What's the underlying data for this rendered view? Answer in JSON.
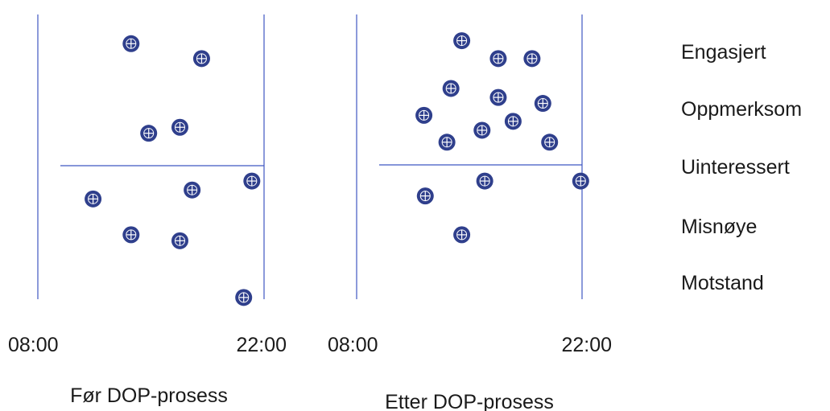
{
  "colors": {
    "axis": "#3f57c2",
    "point_fill": "#2f3f8c",
    "point_mark": "#ffffff",
    "text": "#1a1a1a"
  },
  "chart_data": {
    "type": "scatter",
    "x_ticks": [
      "08:00",
      "22:00"
    ],
    "y_categories": [
      "Engasjert",
      "Oppmerksom",
      "Uinteressert",
      "Misnøye",
      "Motstand"
    ],
    "ylim": [
      0.5,
      5.2
    ],
    "xlim": [
      8,
      22
    ],
    "grid": false,
    "legend": "none",
    "panels": [
      {
        "label": "Før DOP-prosess",
        "points": [
          {
            "x": 12.2,
            "y": 5.05
          },
          {
            "x": 17.4,
            "y": 4.8
          },
          {
            "x": 15.8,
            "y": 3.65
          },
          {
            "x": 13.5,
            "y": 3.55
          },
          {
            "x": 21.1,
            "y": 2.75
          },
          {
            "x": 16.7,
            "y": 2.6
          },
          {
            "x": 9.4,
            "y": 2.45
          },
          {
            "x": 12.2,
            "y": 1.85
          },
          {
            "x": 15.8,
            "y": 1.75
          },
          {
            "x": 20.5,
            "y": 0.8
          }
        ]
      },
      {
        "label": "Etter DOP-prosess",
        "points": [
          {
            "x": 13.1,
            "y": 5.1
          },
          {
            "x": 15.8,
            "y": 4.8
          },
          {
            "x": 18.3,
            "y": 4.8
          },
          {
            "x": 12.3,
            "y": 4.3
          },
          {
            "x": 15.8,
            "y": 4.15
          },
          {
            "x": 19.1,
            "y": 4.05
          },
          {
            "x": 10.3,
            "y": 3.85
          },
          {
            "x": 16.9,
            "y": 3.75
          },
          {
            "x": 14.6,
            "y": 3.6
          },
          {
            "x": 12.0,
            "y": 3.4
          },
          {
            "x": 19.6,
            "y": 3.4
          },
          {
            "x": 21.9,
            "y": 2.75
          },
          {
            "x": 14.8,
            "y": 2.75
          },
          {
            "x": 10.4,
            "y": 2.5
          },
          {
            "x": 13.1,
            "y": 1.85
          }
        ]
      }
    ]
  }
}
